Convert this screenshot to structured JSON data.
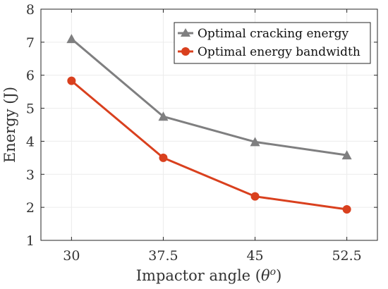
{
  "chart_data": {
    "type": "line",
    "x": [
      30,
      37.5,
      45,
      52.5
    ],
    "x_tick_labels": [
      "30",
      "37.5",
      "45",
      "52.5"
    ],
    "xlim": [
      27.5,
      55
    ],
    "ylim": [
      1,
      8
    ],
    "y_ticks": [
      1,
      2,
      3,
      4,
      5,
      6,
      7,
      8
    ],
    "y_tick_labels": [
      "1",
      "2",
      "3",
      "4",
      "5",
      "6",
      "7",
      "8"
    ],
    "xlabel_text": "Impactor angle (",
    "xlabel_symbol": "θ",
    "xlabel_sup": "o",
    "xlabel_close": ")",
    "ylabel": "Energy (J)",
    "grid": true,
    "legend_position": "top-right",
    "series": [
      {
        "name": "Optimal cracking energy",
        "values": [
          7.1,
          4.75,
          3.98,
          3.58
        ],
        "color": "#7f7f80",
        "marker": "triangle"
      },
      {
        "name": "Optimal energy bandwidth",
        "values": [
          5.83,
          3.5,
          2.33,
          1.94
        ],
        "color": "#d9401e",
        "marker": "circle"
      }
    ]
  }
}
